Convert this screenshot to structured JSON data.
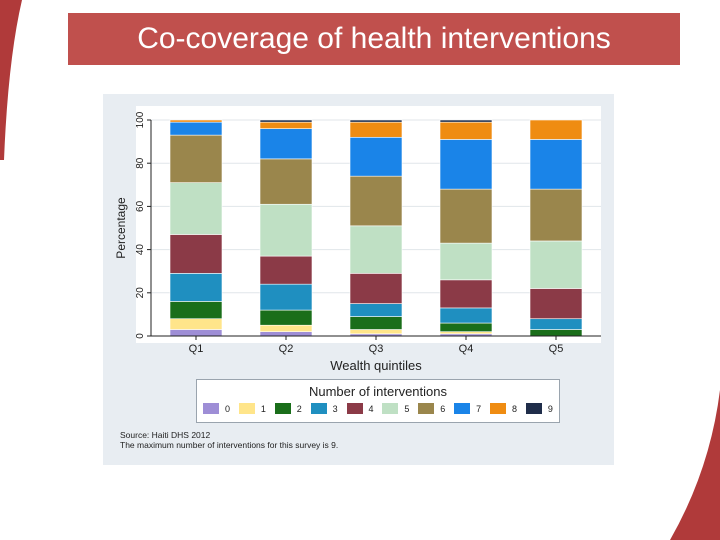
{
  "slide": {
    "title": "Co-coverage of health interventions",
    "banner_color": "#c0504d"
  },
  "chart_data": {
    "type": "bar",
    "stacked": true,
    "title": "",
    "xlabel": "Wealth quintiles",
    "ylabel": "Percentage",
    "ylim": [
      0,
      100
    ],
    "yticks": [
      "0",
      "20",
      "40",
      "60",
      "80",
      "100"
    ],
    "categories": [
      "Q1",
      "Q2",
      "Q3",
      "Q4",
      "Q5"
    ],
    "series": [
      {
        "name": "0",
        "color": "#9e8ed6",
        "values": [
          3,
          2,
          1,
          1,
          0
        ]
      },
      {
        "name": "1",
        "color": "#ffe58a",
        "values": [
          5,
          3,
          2,
          1,
          0
        ]
      },
      {
        "name": "2",
        "color": "#1a6e1a",
        "values": [
          8,
          7,
          6,
          4,
          3
        ]
      },
      {
        "name": "3",
        "color": "#1f8fc0",
        "values": [
          13,
          12,
          6,
          7,
          5
        ]
      },
      {
        "name": "4",
        "color": "#8b3a47",
        "values": [
          18,
          13,
          14,
          13,
          14
        ]
      },
      {
        "name": "5",
        "color": "#bfe0c4",
        "values": [
          24,
          24,
          22,
          17,
          22
        ]
      },
      {
        "name": "6",
        "color": "#9a864c",
        "values": [
          22,
          21,
          23,
          25,
          24
        ]
      },
      {
        "name": "7",
        "color": "#1a84e8",
        "values": [
          6,
          14,
          18,
          23,
          23
        ]
      },
      {
        "name": "8",
        "color": "#ef8c12",
        "values": [
          1,
          3,
          7,
          8,
          9
        ]
      },
      {
        "name": "9",
        "color": "#1f2d4a",
        "values": [
          0,
          1,
          1,
          1,
          0
        ]
      }
    ],
    "legend": {
      "title": "Number of interventions",
      "placement": "bottom"
    },
    "grid": true
  },
  "source": {
    "line1": "Source: Haiti DHS 2012",
    "line2": "The maximum number of interventions for this survey is 9."
  }
}
